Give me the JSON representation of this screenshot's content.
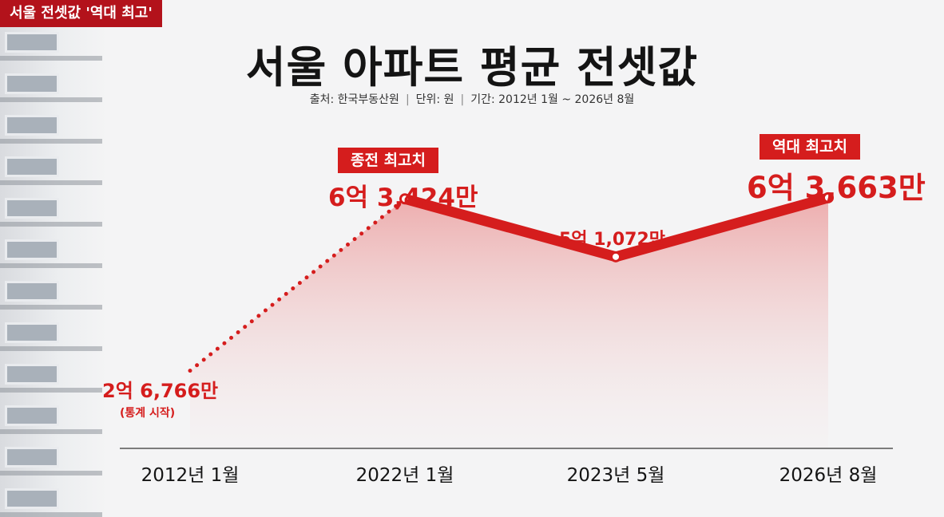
{
  "corner_tag": "서울 전셋값 '역대 최고'",
  "title": "서울 아파트 평균 전셋값",
  "source": {
    "source_text": "출처: 한국부동산원",
    "unit_text": "단위: 원",
    "period_text": "기간: 2012년 1월 ~ 2026년 8월"
  },
  "colors": {
    "accent": "#d51d1d",
    "tag": "#b3121b",
    "text": "#141414"
  },
  "annotations": {
    "prev_high_badge": "종전 최고치",
    "record_high_badge": "역대 최고치",
    "start_note": "(통계 시작)"
  },
  "chart_data": {
    "type": "line",
    "title": "서울 아파트 평균 전셋값",
    "categories": [
      "2012년 1월",
      "2022년 1월",
      "2023년 5월",
      "2026년 8월"
    ],
    "values": [
      267660000,
      634240000,
      510720000,
      636630000
    ],
    "value_labels": [
      "2억 6,766만",
      "6억 3,424만",
      "5억 1,072만",
      "6억 3,663만"
    ],
    "segment_styles": [
      "dotted",
      "solid",
      "solid"
    ],
    "area_fill": true,
    "grid": false,
    "legend": "none"
  }
}
